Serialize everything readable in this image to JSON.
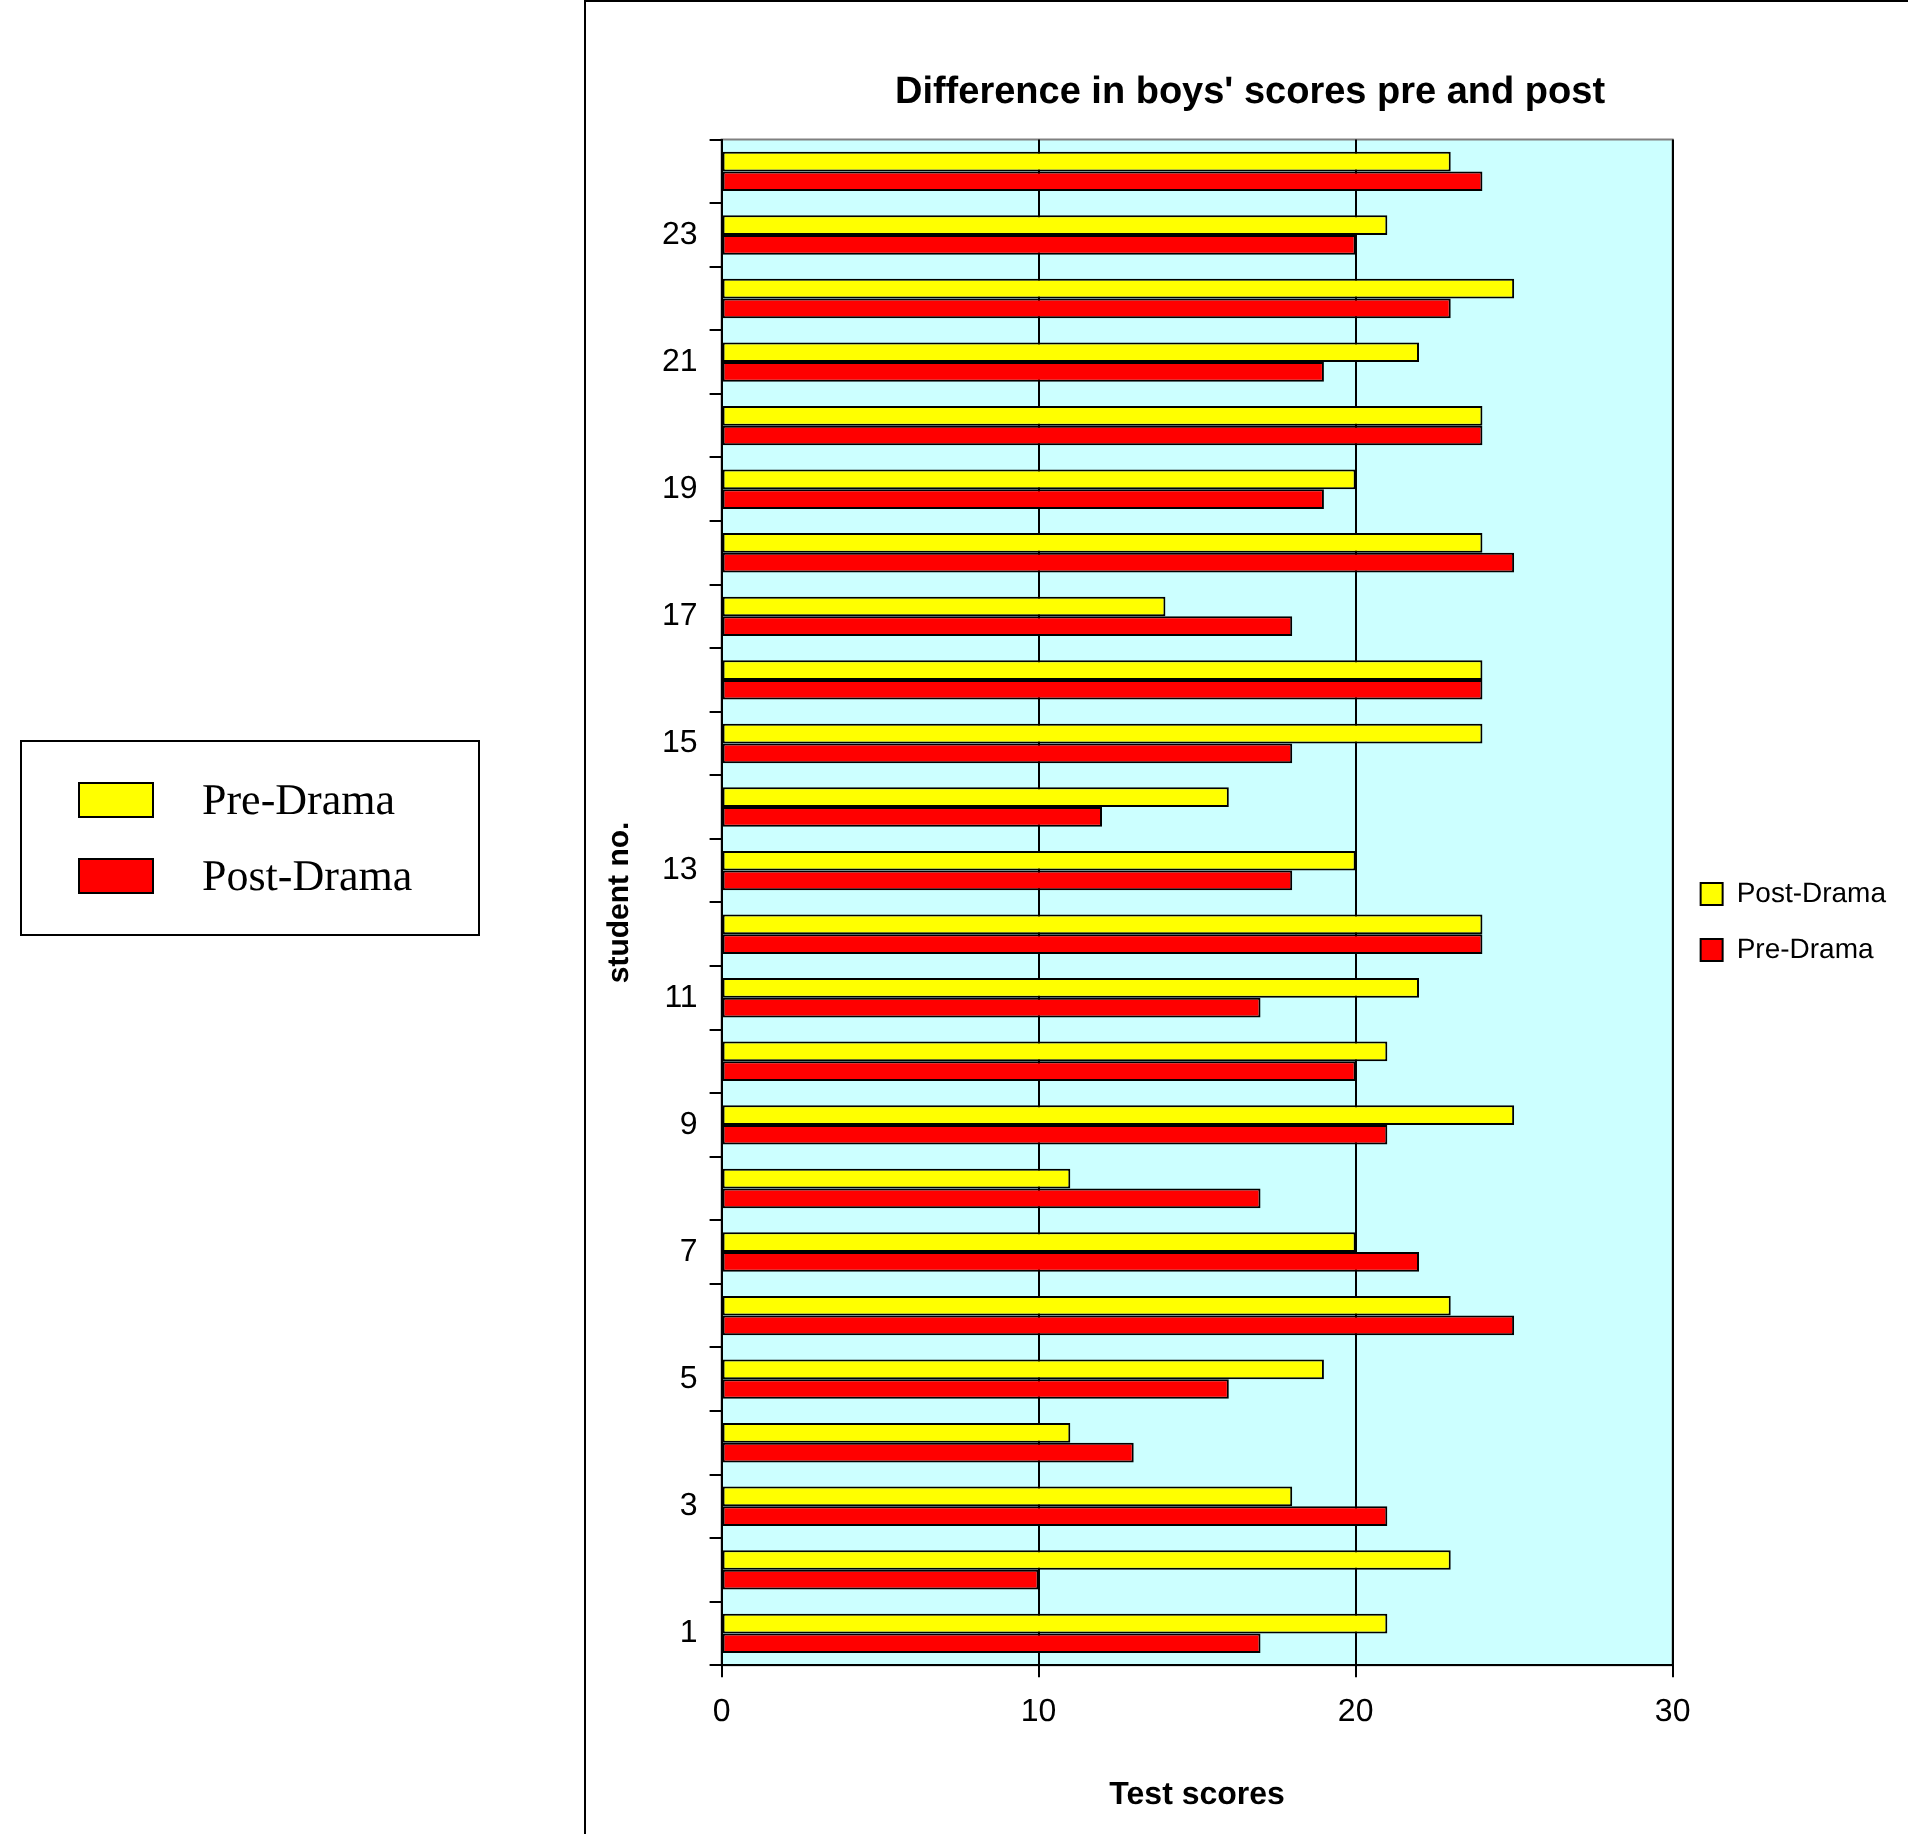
{
  "chart_data": {
    "type": "bar",
    "orientation": "horizontal",
    "title": "Difference in boys' scores pre and post",
    "xlabel": "Test scores",
    "ylabel": "student no.",
    "categories": [
      null,
      "23",
      null,
      "21",
      null,
      "19",
      null,
      "17",
      null,
      "15",
      null,
      "13",
      null,
      "11",
      null,
      "9",
      null,
      "7",
      null,
      "5",
      null,
      "3",
      null,
      "1"
    ],
    "series": [
      {
        "name": "Post-Drama",
        "color": "#ffff00",
        "values": [
          23,
          21,
          25,
          22,
          24,
          20,
          24,
          14,
          24,
          24,
          16,
          20,
          24,
          22,
          21,
          25,
          11,
          20,
          23,
          19,
          11,
          18,
          23,
          21
        ]
      },
      {
        "name": "Pre-Drama",
        "color": "#ff0000",
        "values": [
          24,
          20,
          23,
          19,
          24,
          19,
          25,
          18,
          24,
          18,
          12,
          18,
          24,
          17,
          20,
          21,
          17,
          22,
          25,
          16,
          13,
          21,
          10,
          17
        ]
      }
    ],
    "xlim": [
      0,
      30
    ],
    "xticks": [
      0,
      10,
      20,
      30
    ],
    "grid": "x",
    "legend": "right",
    "annotations": [
      "Pre-Drama",
      "Post-Drama"
    ]
  }
}
